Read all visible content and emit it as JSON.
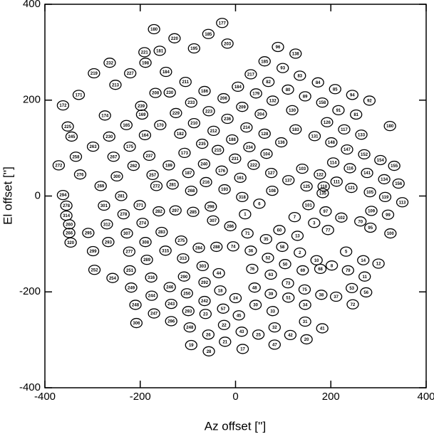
{
  "chart_data": {
    "type": "scatter",
    "xlabel": "Az offset ['']",
    "ylabel": "El offset ['']",
    "xlim": [
      -400,
      400
    ],
    "ylim": [
      -400,
      400
    ],
    "xticks": [
      -400,
      -200,
      0,
      200,
      400
    ],
    "yticks": [
      -400,
      -200,
      0,
      200,
      400
    ],
    "color": "#000000",
    "labels": [
      "177",
      "180",
      "185",
      "220",
      "203",
      "195",
      "181",
      "96",
      "138",
      "221",
      "232",
      "198",
      "185",
      "93",
      "219",
      "227",
      "184",
      "217",
      "83",
      "84",
      "85",
      "94",
      "92",
      "213",
      "211",
      "171",
      "230",
      "186",
      "179",
      "82",
      "80",
      "184",
      "206",
      "209",
      "208",
      "172",
      "239",
      "89",
      "132",
      "130",
      "158",
      "91",
      "81",
      "174",
      "169",
      "229",
      "233",
      "223",
      "236",
      "204",
      "225",
      "165",
      "170",
      "210",
      "212",
      "188",
      "214",
      "128",
      "183",
      "126",
      "117",
      "133",
      "180",
      "245",
      "230",
      "164",
      "182",
      "215",
      "234",
      "136",
      "104",
      "131",
      "148",
      "147",
      "152",
      "263",
      "175",
      "173",
      "235",
      "258",
      "267",
      "237",
      "240",
      "231",
      "114",
      "116",
      "154",
      "155",
      "272",
      "276",
      "269",
      "300",
      "262",
      "257",
      "189",
      "187",
      "176",
      "222",
      "127",
      "137",
      "103",
      "122",
      "111",
      "141",
      "134",
      "156",
      "161",
      "216",
      "193",
      "272",
      "281",
      "268",
      "294",
      "281",
      "271",
      "278",
      "301",
      "278",
      "314",
      "282",
      "297",
      "285",
      "298",
      "318",
      "108",
      "125",
      "118",
      "121",
      "105",
      "119",
      "113",
      "135",
      "6",
      "1",
      "101",
      "7",
      "3",
      "97",
      "102",
      "109",
      "99",
      "95",
      "100",
      "70",
      "77",
      "13",
      "60",
      "71",
      "307",
      "286",
      "74",
      "312",
      "260",
      "274",
      "283",
      "266",
      "295",
      "307",
      "320",
      "293",
      "308",
      "289",
      "277",
      "315",
      "275",
      "284",
      "288",
      "313",
      "303",
      "36",
      "35",
      "52",
      "2",
      "58",
      "10",
      "5",
      "14",
      "12",
      "79",
      "11",
      "8",
      "69",
      "68",
      "50",
      "299",
      "252",
      "254",
      "251",
      "316",
      "44",
      "76",
      "63",
      "290",
      "292",
      "18",
      "48",
      "39",
      "73",
      "51",
      "75",
      "53",
      "56",
      "34",
      "38",
      "37",
      "72",
      "24",
      "249",
      "244",
      "246",
      "250",
      "242",
      "57",
      "45",
      "30",
      "33",
      "42",
      "31",
      "41",
      "248",
      "247",
      "243",
      "293",
      "23",
      "22",
      "26",
      "43",
      "32",
      "306",
      "296",
      "248",
      "21",
      "17",
      "25",
      "47",
      "19",
      "28",
      "20"
    ],
    "x": [
      -28,
      -171,
      -57,
      -128,
      -17,
      -87,
      -159,
      89,
      126,
      -191,
      -264,
      -189,
      61,
      99,
      -297,
      -221,
      -146,
      32,
      135,
      173,
      209,
      245,
      281,
      -252,
      -105,
      -329,
      -138,
      -65,
      43,
      69,
      110,
      5,
      -25,
      14,
      -168,
      -362,
      -198,
      146,
      78,
      119,
      182,
      216,
      253,
      -274,
      -196,
      -125,
      -93,
      -56,
      -17,
      53,
      -352,
      -229,
      -158,
      -87,
      -46,
      -7,
      23,
      61,
      126,
      192,
      228,
      264,
      324,
      -344,
      -265,
      -190,
      -116,
      -37,
      29,
      96,
      65,
      166,
      201,
      234,
      270,
      -299,
      -222,
      -107,
      -70,
      -335,
      -256,
      -181,
      -66,
      -1,
      205,
      240,
      304,
      333,
      -371,
      -326,
      -283,
      -249,
      -214,
      -174,
      -140,
      -99,
      -29,
      38,
      75,
      111,
      140,
      177,
      212,
      276,
      312,
      342,
      10,
      -62,
      -23,
      -166,
      -132,
      -93,
      -362,
      -240,
      -201,
      -235,
      -276,
      -355,
      -355,
      -161,
      -126,
      -89,
      -52,
      14,
      77,
      149,
      185,
      243,
      282,
      314,
      350,
      183,
      50,
      20,
      153,
      124,
      165,
      189,
      222,
      285,
      320,
      283,
      325,
      262,
      194,
      130,
      92,
      25,
      -47,
      -11,
      -5,
      -270,
      -349,
      -195,
      -155,
      -349,
      -309,
      -228,
      -346,
      -267,
      -189,
      -186,
      -223,
      -147,
      -114,
      -77,
      -40,
      -110,
      -69,
      32,
      64,
      68,
      135,
      98,
      170,
      232,
      268,
      300,
      236,
      271,
      202,
      141,
      178,
      104,
      -299,
      -296,
      -258,
      -222,
      -177,
      -35,
      35,
      74,
      -108,
      -65,
      -32,
      40,
      74,
      110,
      111,
      145,
      244,
      274,
      146,
      180,
      211,
      246,
      0,
      -219,
      -176,
      -138,
      -102,
      -65,
      -26,
      7,
      42,
      78,
      115,
      146,
      182,
      -210,
      -171,
      -135,
      -99,
      -63,
      -24,
      -57,
      13,
      82,
      -208,
      -135,
      -96,
      -22,
      15,
      48,
      82,
      -93,
      -56,
      149
    ],
    "y": [
      361,
      348,
      338,
      329,
      318,
      308,
      303,
      311,
      297,
      300,
      278,
      278,
      281,
      267,
      256,
      256,
      259,
      254,
      251,
      237,
      223,
      211,
      199,
      232,
      238,
      211,
      216,
      219,
      214,
      238,
      222,
      228,
      204,
      186,
      215,
      189,
      188,
      208,
      199,
      179,
      195,
      179,
      170,
      168,
      170,
      173,
      195,
      177,
      161,
      171,
      145,
      148,
      148,
      152,
      136,
      118,
      143,
      130,
      139,
      154,
      139,
      128,
      146,
      124,
      124,
      127,
      130,
      96,
      102,
      112,
      88,
      125,
      112,
      97,
      87,
      103,
      103,
      90,
      109,
      82,
      82,
      84,
      67,
      78,
      70,
      58,
      75,
      63,
      64,
      45,
      21,
      41,
      63,
      44,
      64,
      48,
      53,
      65,
      48,
      33,
      57,
      45,
      30,
      48,
      35,
      26,
      38,
      29,
      14,
      21,
      24,
      11,
      2,
      0,
      -19,
      -38,
      -20,
      -20,
      -41,
      -32,
      -30,
      -33,
      -22,
      -2,
      11,
      20,
      20,
      17,
      8,
      -2,
      -13,
      6,
      -16,
      -38,
      -19,
      -44,
      -56,
      -32,
      -45,
      -31,
      -39,
      -66,
      -78,
      -53,
      -71,
      -83,
      -71,
      -78,
      -51,
      -63,
      -105,
      -59,
      -59,
      -56,
      -75,
      -77,
      -77,
      -78,
      -97,
      -96,
      -96,
      -133,
      -116,
      -114,
      -93,
      -108,
      -106,
      -130,
      -146,
      -114,
      -90,
      -129,
      -118,
      -106,
      -134,
      -116,
      -134,
      -141,
      -155,
      -168,
      -145,
      -155,
      -152,
      -142,
      -115,
      -154,
      -171,
      -155,
      -170,
      -161,
      -152,
      -164,
      -168,
      -180,
      -197,
      -191,
      -204,
      -182,
      -212,
      -195,
      -192,
      -201,
      -227,
      -206,
      -210,
      -226,
      -213,
      -191,
      -208,
      -190,
      -203,
      -219,
      -235,
      -249,
      -227,
      -240,
      -290,
      -262,
      -276,
      -227,
      -245,
      -225,
      -240,
      -246,
      -269,
      -289,
      -283,
      -274,
      -265,
      -261,
      -274,
      -304,
      -319,
      -289,
      -310,
      -311,
      -324,
      -299
    ]
  }
}
